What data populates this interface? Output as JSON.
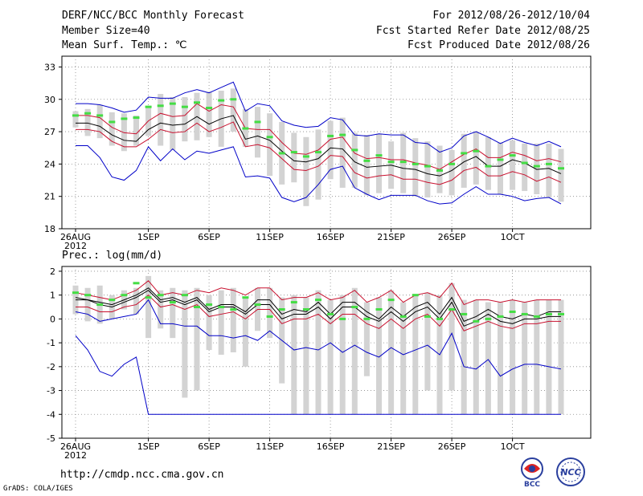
{
  "header": {
    "title": "DERF/NCC/BCC Monthly Forecast",
    "member_size": "Member Size=40",
    "variable": "Mean Surf. Temp.: ℃",
    "period": "For 2012/08/26-2012/10/04",
    "started": "Fcst Started Refer Date 2012/08/25",
    "produced": "Fcst Produced Date 2012/08/26"
  },
  "footer": {
    "url": "http://cmdp.ncc.cma.gov.cn",
    "credit": "GrADS: COLA/IGES",
    "logo_left_text": "BCC",
    "logo_right_text": "NCC"
  },
  "colors": {
    "mean": "#000000",
    "inner": "#c8102e",
    "outer": "#0000c8",
    "box": "#d3d3d3",
    "marker": "#44dd44",
    "grid": "#888888"
  },
  "chart_data": [
    {
      "type": "line",
      "title": "Mean Surf. Temp.: ℃",
      "x_ticks": [
        "26AUG",
        "1SEP",
        "6SEP",
        "11SEP",
        "16SEP",
        "21SEP",
        "26SEP",
        "1OCT"
      ],
      "x_tick_days": [
        0,
        6,
        11,
        16,
        21,
        26,
        31,
        36
      ],
      "x_sublabel": "2012",
      "y_ticks": [
        18,
        21,
        24,
        27,
        30,
        33
      ],
      "ylim": [
        18,
        34
      ],
      "days": 40,
      "series": [
        {
          "name": "max",
          "values": [
            29.6,
            29.6,
            29.5,
            29.2,
            28.8,
            29.0,
            30.2,
            30.1,
            30.1,
            30.6,
            30.9,
            30.6,
            31.1,
            31.6,
            28.9,
            29.6,
            29.4,
            28.0,
            27.6,
            27.4,
            27.5,
            28.3,
            28.1,
            26.7,
            26.6,
            26.8,
            26.7,
            26.7,
            26.0,
            25.9,
            25.1,
            25.5,
            26.6,
            27.0,
            26.5,
            25.9,
            26.4,
            26.0,
            25.7,
            26.1,
            25.6
          ]
        },
        {
          "name": "upper",
          "values": [
            28.5,
            28.5,
            28.3,
            27.4,
            26.9,
            26.8,
            28.0,
            28.7,
            28.4,
            28.5,
            29.6,
            28.9,
            29.5,
            29.3,
            27.3,
            27.2,
            27.2,
            26.0,
            25.0,
            24.9,
            25.3,
            26.3,
            26.5,
            25.0,
            24.5,
            24.6,
            24.4,
            24.4,
            24.1,
            23.9,
            23.5,
            24.2,
            24.9,
            25.4,
            24.6,
            24.6,
            25.1,
            24.8,
            24.3,
            24.5,
            24.2
          ]
        },
        {
          "name": "mean",
          "values": [
            27.8,
            27.8,
            27.5,
            26.7,
            26.2,
            26.1,
            27.2,
            27.8,
            27.6,
            27.7,
            28.4,
            27.7,
            28.2,
            28.5,
            26.3,
            26.6,
            26.2,
            25.2,
            24.3,
            24.2,
            24.5,
            25.5,
            25.4,
            24.2,
            23.7,
            23.8,
            23.9,
            23.6,
            23.5,
            23.1,
            22.9,
            23.4,
            24.2,
            24.7,
            23.8,
            23.8,
            24.4,
            24.1,
            23.5,
            23.6,
            23.1
          ]
        },
        {
          "name": "lower",
          "values": [
            27.2,
            27.2,
            27.0,
            26.1,
            25.6,
            25.6,
            26.3,
            27.2,
            26.9,
            27.0,
            27.8,
            27.0,
            27.4,
            27.9,
            25.6,
            25.8,
            25.5,
            24.5,
            23.5,
            23.4,
            23.8,
            24.8,
            24.7,
            23.2,
            22.7,
            22.9,
            23.0,
            22.6,
            22.6,
            22.3,
            22.1,
            22.5,
            23.4,
            23.7,
            22.9,
            22.9,
            23.3,
            23.0,
            22.4,
            22.8,
            22.3
          ]
        },
        {
          "name": "min",
          "values": [
            25.7,
            25.7,
            24.6,
            22.8,
            22.5,
            23.4,
            25.6,
            24.3,
            25.4,
            24.4,
            25.2,
            25.0,
            25.3,
            25.6,
            22.8,
            22.9,
            22.7,
            20.9,
            20.5,
            20.9,
            22.1,
            23.5,
            23.8,
            21.8,
            21.2,
            20.7,
            21.1,
            21.1,
            21.1,
            20.6,
            20.3,
            20.4,
            21.2,
            21.9,
            21.2,
            21.2,
            21.0,
            20.6,
            20.8,
            20.9,
            20.3
          ]
        }
      ],
      "box_low": [
        27.4,
        26.6,
        26.4,
        25.7,
        25.2,
        25.7,
        26.6,
        25.7,
        25.3,
        26.1,
        26.2,
        26.5,
        25.6,
        27.0,
        25.6,
        24.6,
        22.9,
        22.1,
        22.3,
        20.1,
        20.7,
        22.6,
        21.8,
        21.8,
        21.1,
        21.3,
        21.7,
        21.3,
        21.0,
        20.9,
        21.3,
        21.1,
        21.8,
        22.1,
        21.6,
        21.2,
        21.6,
        21.5,
        21.2,
        20.9,
        20.5
      ],
      "box_high": [
        28.9,
        29.1,
        29.5,
        28.8,
        28.7,
        28.5,
        29.4,
        30.5,
        30.2,
        30.2,
        30.6,
        30.7,
        30.8,
        31.0,
        29.1,
        29.3,
        28.7,
        27.9,
        26.9,
        26.5,
        27.2,
        28.0,
        28.3,
        26.9,
        26.7,
        26.8,
        26.1,
        26.9,
        26.4,
        26.1,
        25.7,
        25.3,
        26.8,
        27.0,
        26.5,
        26.0,
        26.2,
        25.9,
        25.9,
        25.9,
        25.4
      ],
      "markers": [
        28.5,
        28.7,
        28.5,
        27.9,
        28.2,
        28.3,
        29.3,
        29.4,
        29.6,
        29.3,
        29.7,
        29.2,
        29.9,
        30.0,
        27.3,
        27.9,
        26.5,
        25.0,
        25.1,
        24.7,
        25.1,
        26.6,
        26.7,
        25.3,
        24.3,
        24.8,
        24.2,
        24.2,
        24.0,
        23.8,
        23.4,
        24.0,
        25.0,
        25.2,
        23.8,
        24.4,
        24.8,
        24.1,
        23.8,
        24.0,
        23.6
      ]
    },
    {
      "type": "line",
      "title": "Prec.: log(mm/d)",
      "x_ticks": [
        "26AUG",
        "1SEP",
        "6SEP",
        "11SEP",
        "16SEP",
        "21SEP",
        "26SEP",
        "1OCT"
      ],
      "x_tick_days": [
        0,
        6,
        11,
        16,
        21,
        26,
        31,
        36
      ],
      "x_sublabel": "2012",
      "y_ticks": [
        -5,
        -4,
        -3,
        -2,
        -1,
        0,
        1,
        2
      ],
      "ylim": [
        -5,
        2.2
      ],
      "days": 40,
      "series": [
        {
          "name": "max",
          "values": [
            -0.7,
            -1.3,
            -2.2,
            -2.4,
            -1.9,
            -1.6,
            -4.0,
            -4.0,
            -4.0,
            -4.0,
            -4.0,
            -4.0,
            -4.0,
            -4.0,
            -4.0,
            -4.0,
            -4.0,
            -4.0,
            -4.0,
            -4.0,
            -4.0,
            -4.0,
            -4.0,
            -4.0,
            -4.0,
            -4.0,
            -4.0,
            -4.0,
            -4.0,
            -4.0,
            -4.0,
            -4.0,
            -4.0,
            -4.0,
            -4.0,
            -4.0,
            -4.0,
            -4.0,
            -4.0,
            -4.0,
            -4.0
          ]
        },
        {
          "name": "upper",
          "values": [
            1.1,
            1.0,
            0.9,
            0.8,
            1.0,
            1.2,
            1.6,
            1.0,
            1.1,
            1.0,
            1.2,
            1.1,
            1.3,
            1.2,
            1.0,
            1.3,
            1.3,
            0.8,
            0.9,
            0.9,
            1.1,
            0.8,
            0.9,
            1.2,
            0.7,
            0.9,
            1.2,
            0.7,
            1.0,
            1.1,
            0.9,
            1.5,
            0.6,
            0.8,
            0.8,
            0.7,
            0.8,
            0.7,
            0.8,
            0.8,
            0.8
          ]
        },
        {
          "name": "mean",
          "values": [
            0.8,
            0.8,
            0.6,
            0.5,
            0.7,
            0.9,
            1.2,
            0.7,
            0.8,
            0.6,
            0.8,
            0.3,
            0.5,
            0.5,
            0.2,
            0.6,
            0.6,
            0.0,
            0.2,
            0.2,
            0.5,
            0.0,
            0.5,
            0.5,
            0.1,
            -0.1,
            0.3,
            -0.1,
            0.3,
            0.5,
            0.0,
            0.7,
            -0.3,
            -0.1,
            0.2,
            -0.1,
            -0.2,
            0.0,
            0.0,
            0.1,
            0.1
          ]
        },
        {
          "name": "lower",
          "values": [
            0.5,
            0.5,
            0.3,
            0.3,
            0.5,
            0.6,
            1.0,
            0.5,
            0.6,
            0.4,
            0.6,
            0.1,
            0.2,
            0.3,
            0.0,
            0.4,
            0.4,
            -0.2,
            0.0,
            0.0,
            0.2,
            -0.2,
            0.2,
            0.2,
            -0.2,
            -0.4,
            0.0,
            -0.4,
            0.0,
            0.2,
            -0.3,
            0.4,
            -0.5,
            -0.3,
            -0.1,
            -0.3,
            -0.4,
            -0.2,
            -0.2,
            -0.1,
            -0.1
          ]
        },
        {
          "name": "min",
          "values": [
            0.3,
            0.2,
            -0.1,
            0.0,
            0.1,
            0.2,
            0.8,
            -0.2,
            -0.2,
            -0.3,
            -0.3,
            -0.7,
            -0.7,
            -0.8,
            -0.7,
            -0.9,
            -0.5,
            -0.9,
            -1.3,
            -1.2,
            -1.3,
            -1.0,
            -1.4,
            -1.1,
            -1.4,
            -1.6,
            -1.2,
            -1.5,
            -1.3,
            -1.1,
            -1.5,
            -0.6,
            -2.0,
            -2.1,
            -1.7,
            -2.4,
            -2.1,
            -1.9,
            -1.9,
            -2.0,
            -2.1
          ]
        },
        {
          "name": "upper_mid",
          "values": [
            0.9,
            0.8,
            0.7,
            0.6,
            0.8,
            1.0,
            1.3,
            0.8,
            0.9,
            0.7,
            0.9,
            0.4,
            0.6,
            0.6,
            0.3,
            0.8,
            0.8,
            0.2,
            0.4,
            0.3,
            0.7,
            0.2,
            0.7,
            0.7,
            0.3,
            0.0,
            0.5,
            0.1,
            0.5,
            0.7,
            0.2,
            0.9,
            -0.1,
            0.1,
            0.4,
            0.1,
            0.0,
            0.2,
            0.1,
            0.3,
            0.3
          ]
        }
      ],
      "box_low": [
        0.2,
        -0.1,
        -0.2,
        0.0,
        0.4,
        0.2,
        -0.8,
        -0.4,
        -0.8,
        -3.3,
        -3.0,
        -1.3,
        -1.5,
        -1.4,
        -2.0,
        -0.5,
        -0.8,
        -2.7,
        -4.0,
        -4.0,
        -4.0,
        -4.0,
        -4.0,
        -4.0,
        -2.4,
        -4.0,
        -4.0,
        -4.0,
        -4.0,
        -3.0,
        -4.0,
        -3.0,
        -4.0,
        -4.0,
        -4.0,
        -4.0,
        -4.0,
        -4.0,
        -4.0,
        -4.0,
        -4.0
      ],
      "box_high": [
        1.4,
        1.3,
        1.4,
        1.0,
        1.2,
        1.3,
        1.8,
        1.2,
        1.3,
        1.2,
        1.3,
        1.0,
        1.2,
        1.3,
        0.9,
        1.3,
        1.3,
        0.9,
        1.0,
        0.9,
        1.2,
        0.8,
        1.0,
        1.3,
        0.7,
        0.9,
        1.2,
        0.7,
        1.0,
        1.1,
        1.0,
        1.5,
        0.8,
        0.8,
        0.7,
        0.7,
        0.8,
        0.7,
        0.8,
        0.8,
        0.8
      ],
      "markers": [
        1.1,
        1.0,
        0.6,
        0.8,
        1.0,
        1.5,
        0.9,
        1.0,
        0.7,
        1.0,
        0.5,
        0.6,
        0.5,
        0.4,
        0.9,
        0.6,
        0.1,
        0.4,
        0.7,
        0.4,
        0.8,
        0.2,
        0.0,
        0.5,
        0.0,
        0.4,
        0.8,
        0.1,
        1.0,
        0.1,
        0.0,
        0.4,
        0.2,
        -0.1,
        0.0,
        0.1,
        0.3,
        0.2,
        0.1,
        0.2,
        0.2
      ]
    }
  ]
}
